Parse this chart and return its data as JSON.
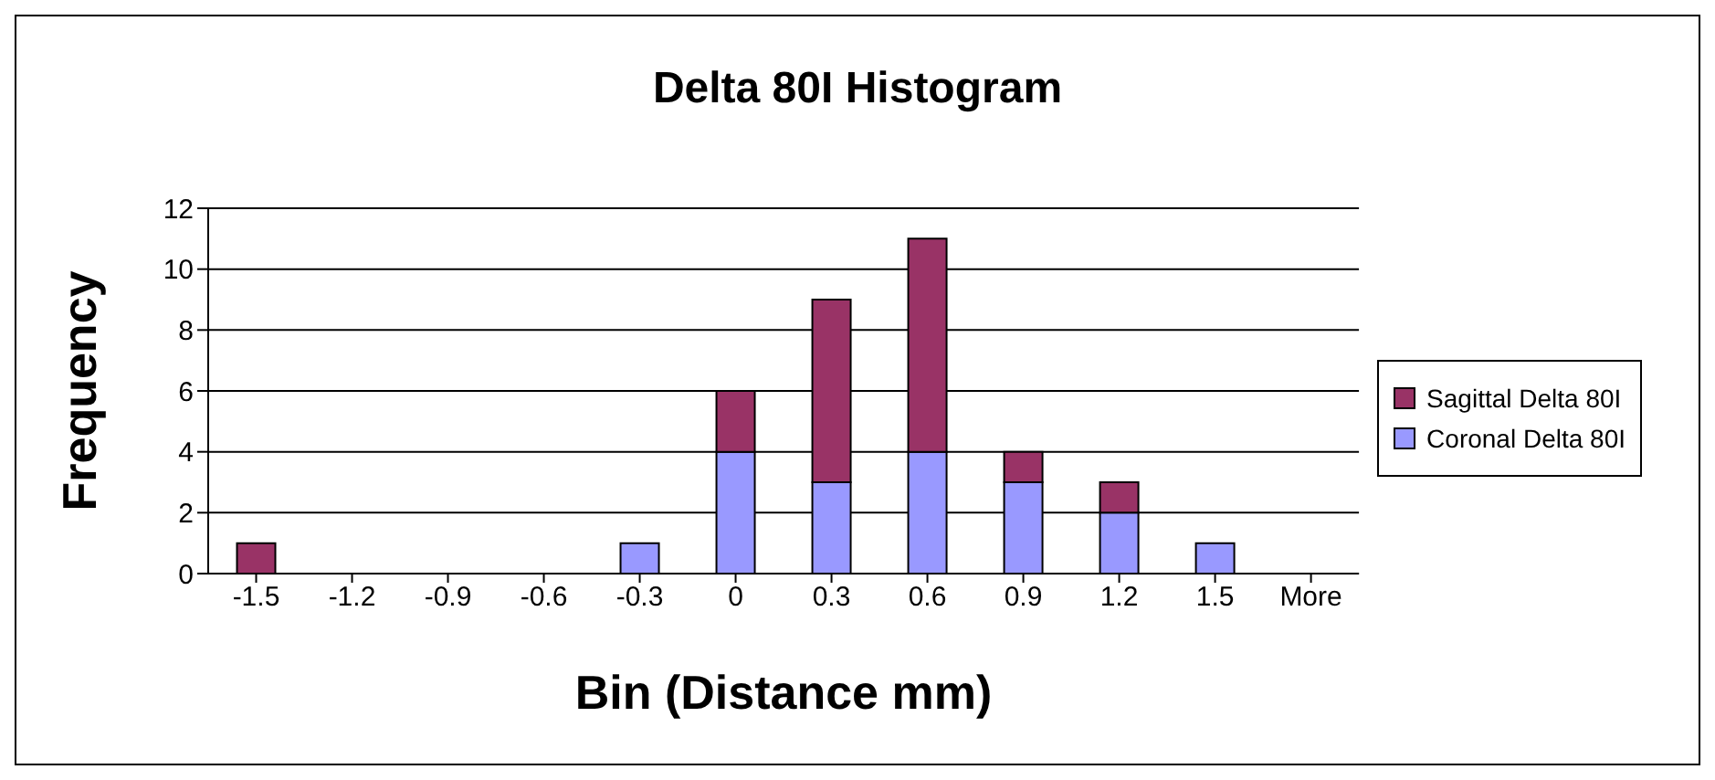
{
  "chart_data": {
    "type": "bar",
    "title": "Delta 80I Histogram",
    "xlabel": "Bin (Distance mm)",
    "ylabel": "Frequency",
    "categories": [
      "-1.5",
      "-1.2",
      "-0.9",
      "-0.6",
      "-0.3",
      "0",
      "0.3",
      "0.6",
      "0.9",
      "1.2",
      "1.5",
      "More"
    ],
    "series": [
      {
        "name": "Coronal Delta 80I",
        "color": "#9999ff",
        "values": [
          0,
          0,
          0,
          0,
          1,
          4,
          3,
          4,
          3,
          2,
          1,
          0
        ]
      },
      {
        "name": "Sagittal Delta 80I",
        "color": "#993366",
        "values": [
          1,
          0,
          0,
          0,
          0,
          2,
          6,
          7,
          1,
          1,
          0,
          0
        ]
      }
    ],
    "stacked": true,
    "ylim": [
      0,
      12
    ],
    "yticks": [
      0,
      2,
      4,
      6,
      8,
      10,
      12
    ],
    "grid": "y",
    "legend": "right"
  }
}
